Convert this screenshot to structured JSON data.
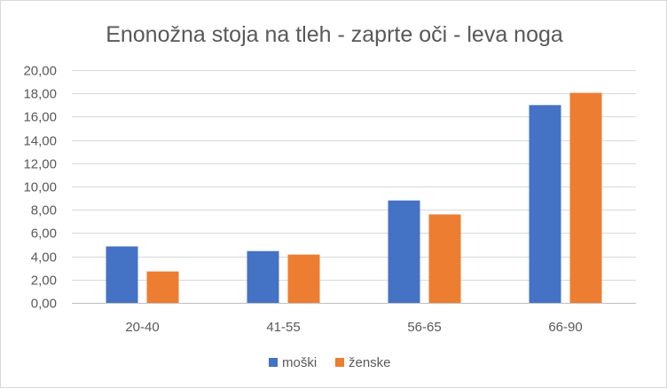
{
  "chart_data": {
    "type": "bar",
    "title": "Enonožna stoja na tleh - zaprte oči - leva noga",
    "categories": [
      "20-40",
      "41-55",
      "56-65",
      "66-90"
    ],
    "series": [
      {
        "name": "moški",
        "color": "#4472c4",
        "values": [
          4.85,
          4.45,
          8.8,
          17.0
        ]
      },
      {
        "name": "ženske",
        "color": "#ed7d31",
        "values": [
          2.7,
          4.15,
          7.6,
          18.05
        ]
      }
    ],
    "ylim": [
      0,
      20
    ],
    "ytick_step": 2,
    "ytick_labels": [
      "0,00",
      "2,00",
      "4,00",
      "6,00",
      "8,00",
      "10,00",
      "12,00",
      "14,00",
      "16,00",
      "18,00",
      "20,00"
    ],
    "grid": true,
    "legend_position": "bottom"
  }
}
